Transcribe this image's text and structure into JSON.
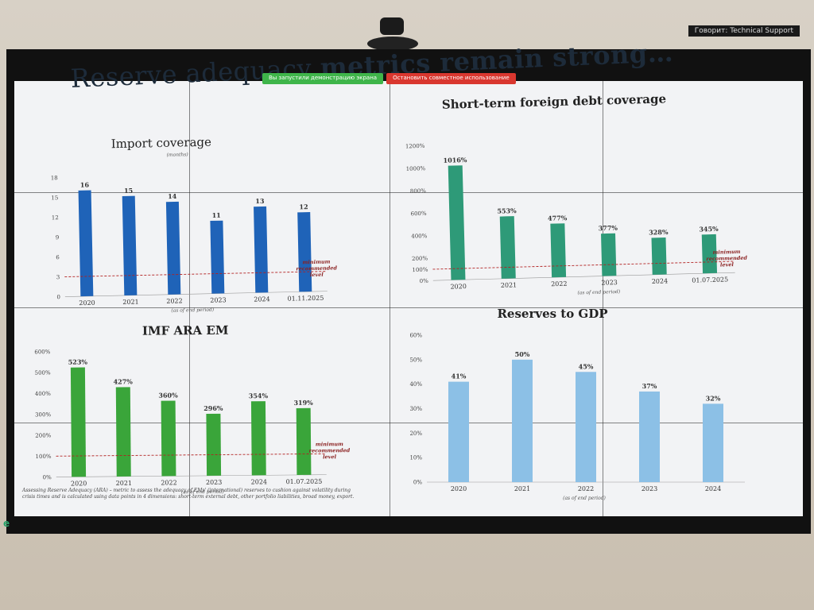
{
  "header": {
    "title_part1": "Reserve adequacy ",
    "title_part2": "metrics remain strong…",
    "support_label": "Говорит: Technical Support",
    "share_notice": "Вы запустили демонстрацию экрана",
    "stop_share": "Остановить совместное использование"
  },
  "footnote": "Assessing Reserve Adequacy (ARA) – metric to assess the adequacy of EMs' (international) reserves to cushion against volatility during crisis times and is calculated using data points in 4 dimensions: short-term external debt, other portfolio liabilities, broad money, export.",
  "chart_data": [
    {
      "type": "bar",
      "title": "Import coverage",
      "subtitle": "(months)",
      "categories": [
        "2020",
        "2021",
        "2022",
        "2023",
        "2024",
        "01.11.2025"
      ],
      "values": [
        16,
        15,
        14,
        11,
        13,
        12
      ],
      "value_labels": [
        "16",
        "15",
        "14",
        "11",
        "13",
        "12"
      ],
      "yticks": [
        "0",
        "3",
        "6",
        "9",
        "12",
        "15",
        "18"
      ],
      "ylim": [
        0,
        18
      ],
      "threshold": 3,
      "threshold_label": [
        "minimum",
        "recommended",
        "level"
      ],
      "period_note": "(as of end period)",
      "color": "#1f63b8"
    },
    {
      "type": "bar",
      "title": "Short-term foreign debt coverage",
      "categories": [
        "2020",
        "2021",
        "2022",
        "2023",
        "2024",
        "01.07.2025"
      ],
      "values": [
        1016,
        553,
        477,
        377,
        328,
        345
      ],
      "value_labels": [
        "1016%",
        "553%",
        "477%",
        "377%",
        "328%",
        "345%"
      ],
      "yticks": [
        "0%",
        "100%",
        "200%",
        "400%",
        "600%",
        "800%",
        "1000%",
        "1200%"
      ],
      "ylim": [
        0,
        1200
      ],
      "threshold": 100,
      "threshold_label": [
        "minimum",
        "recommended",
        "level"
      ],
      "period_note": "(as of end period)",
      "color": "#2e9a78"
    },
    {
      "type": "bar",
      "title": "IMF ARA EM",
      "categories": [
        "2020",
        "2021",
        "2022",
        "2023",
        "2024",
        "01.07.2025"
      ],
      "values": [
        523,
        427,
        360,
        296,
        354,
        319
      ],
      "value_labels": [
        "523%",
        "427%",
        "360%",
        "296%",
        "354%",
        "319%"
      ],
      "yticks": [
        "0%",
        "100%",
        "200%",
        "300%",
        "400%",
        "500%",
        "600%"
      ],
      "ylim": [
        0,
        600
      ],
      "threshold": 100,
      "threshold_label": [
        "minimum",
        "recommended",
        "level"
      ],
      "period_note": "(as of end period)",
      "color": "#3aa53a"
    },
    {
      "type": "bar",
      "title": "Reserves to GDP",
      "categories": [
        "2020",
        "2021",
        "2022",
        "2023",
        "2024"
      ],
      "values": [
        41,
        50,
        45,
        37,
        32
      ],
      "value_labels": [
        "41%",
        "50%",
        "45%",
        "37%",
        "32%"
      ],
      "yticks": [
        "0%",
        "10%",
        "20%",
        "30%",
        "40%",
        "50%",
        "60%"
      ],
      "ylim": [
        0,
        60
      ],
      "period_note": "(as of end period)",
      "color": "#8cc0e6"
    }
  ]
}
